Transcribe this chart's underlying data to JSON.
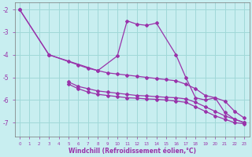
{
  "xlabel": "Windchill (Refroidissement éolien,°C)",
  "background_color": "#c8eef0",
  "grid_color": "#a0d8d8",
  "line_color": "#9933aa",
  "ylim": [
    -7.6,
    -1.7
  ],
  "xlim": [
    -0.5,
    23.5
  ],
  "yticks": [
    -2,
    -3,
    -4,
    -5,
    -6,
    -7
  ],
  "xticks": [
    0,
    1,
    2,
    3,
    4,
    5,
    6,
    7,
    8,
    9,
    10,
    11,
    12,
    13,
    14,
    15,
    16,
    17,
    18,
    19,
    20,
    21,
    22,
    23
  ],
  "line_main_x": [
    0,
    3,
    8,
    10,
    11,
    12,
    13,
    14,
    16,
    17,
    18,
    19,
    20,
    21,
    22,
    23
  ],
  "line_main_y": [
    -2.0,
    -4.0,
    -4.7,
    -4.05,
    -2.5,
    -2.65,
    -2.7,
    -2.6,
    -4.0,
    -5.0,
    -5.9,
    -6.0,
    -5.9,
    -6.55,
    -6.85,
    -7.0
  ],
  "line_diag1_x": [
    0,
    3,
    5,
    6,
    7,
    8,
    9,
    10,
    11,
    12,
    13,
    14,
    15,
    16,
    17,
    18,
    19,
    20,
    21,
    22,
    23
  ],
  "line_diag1_y": [
    -2.0,
    -4.0,
    -4.3,
    -4.45,
    -4.6,
    -4.7,
    -4.8,
    -4.85,
    -4.9,
    -4.95,
    -5.0,
    -5.05,
    -5.1,
    -5.15,
    -5.3,
    -5.5,
    -5.8,
    -5.9,
    -6.05,
    -6.5,
    -6.8
  ],
  "line_diag2_x": [
    5,
    6,
    7,
    8,
    9,
    10,
    11,
    12,
    13,
    14,
    15,
    16,
    17,
    18,
    19,
    20,
    21,
    22,
    23
  ],
  "line_diag2_y": [
    -5.2,
    -5.4,
    -5.5,
    -5.6,
    -5.65,
    -5.7,
    -5.75,
    -5.8,
    -5.82,
    -5.85,
    -5.88,
    -5.9,
    -5.95,
    -6.1,
    -6.3,
    -6.5,
    -6.7,
    -6.85,
    -7.0
  ],
  "line_diag3_x": [
    5,
    6,
    7,
    8,
    9,
    10,
    11,
    12,
    13,
    14,
    15,
    16,
    17,
    18,
    19,
    20,
    21,
    22,
    23
  ],
  "line_diag3_y": [
    -5.3,
    -5.5,
    -5.65,
    -5.75,
    -5.8,
    -5.85,
    -5.9,
    -5.92,
    -5.95,
    -5.97,
    -6.0,
    -6.05,
    -6.1,
    -6.3,
    -6.5,
    -6.7,
    -6.85,
    -7.0,
    -7.05
  ]
}
